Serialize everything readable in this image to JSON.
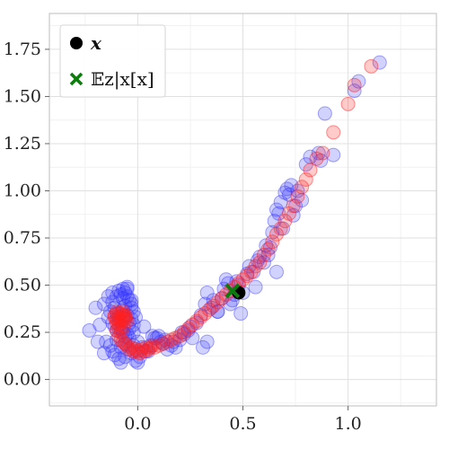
{
  "chart_data": {
    "type": "scatter",
    "xlim": [
      -0.42,
      1.42
    ],
    "ylim": [
      -0.14,
      1.94
    ],
    "x_ticks": [
      0.0,
      0.5,
      1.0
    ],
    "x_tick_labels": [
      "0.0",
      "0.5",
      "1.0"
    ],
    "y_ticks": [
      0.0,
      0.25,
      0.5,
      0.75,
      1.0,
      1.25,
      1.5,
      1.75
    ],
    "y_tick_labels": [
      "0.00",
      "0.25",
      "0.50",
      "0.75",
      "1.00",
      "1.25",
      "1.50",
      "1.75"
    ],
    "grid": true,
    "legend_position": "top-left",
    "legend": [
      {
        "label": "x",
        "marker": "circle",
        "color": "#000000"
      },
      {
        "label": "𝔼z|x[x]",
        "marker": "x",
        "color": "#0b7d0b"
      }
    ],
    "series": [
      {
        "color": "#3333ff",
        "opacity": 0.22,
        "x": [
          -0.2,
          -0.16,
          -0.14,
          -0.12,
          -0.1,
          -0.09,
          -0.08,
          -0.07,
          -0.06,
          -0.05,
          -0.04,
          -0.03,
          -0.02,
          -0.13,
          -0.11,
          -0.1,
          -0.09,
          -0.07,
          -0.06,
          -0.05,
          -0.04,
          -0.03,
          -0.02,
          -0.01,
          -0.12,
          -0.11,
          -0.1,
          -0.08,
          -0.07,
          -0.06,
          -0.05,
          -0.04,
          -0.15,
          -0.13,
          -0.12,
          -0.11,
          -0.09,
          -0.08,
          -0.06,
          -0.05,
          -0.03,
          -0.02,
          -0.01,
          0.0,
          -0.18,
          -0.14,
          -0.12,
          -0.1,
          -0.08,
          -0.06,
          -0.04,
          -0.02,
          -0.07,
          -0.05,
          -0.03,
          0.0,
          0.02,
          0.04,
          0.06,
          0.08,
          0.1,
          0.12,
          0.14,
          0.16,
          0.18,
          0.2,
          0.22,
          0.24,
          0.26,
          0.28,
          0.3,
          0.32,
          0.33,
          0.35,
          0.36,
          0.38,
          0.4,
          0.42,
          0.44,
          0.46,
          0.47,
          0.48,
          0.5,
          0.52,
          0.53,
          0.55,
          0.56,
          0.57,
          0.58,
          0.6,
          0.61,
          0.62,
          0.63,
          0.64,
          0.65,
          0.66,
          0.67,
          0.68,
          0.69,
          0.7,
          0.71,
          0.72,
          0.73,
          0.74,
          0.75,
          0.76,
          0.78,
          0.8,
          0.82,
          0.86,
          0.89,
          0.93,
          1.03,
          1.05,
          1.15,
          -0.23,
          -0.19,
          -0.16,
          0.01,
          0.07,
          0.11,
          0.31,
          0.33,
          0.38,
          0.49,
          0.66,
          0.87,
          0.45,
          0.41,
          0.43,
          -0.05,
          -0.03,
          0.03,
          0.05,
          0.09,
          0.13,
          0.17,
          0.21,
          0.25
        ],
        "y": [
          0.38,
          0.4,
          0.44,
          0.46,
          0.44,
          0.47,
          0.45,
          0.48,
          0.46,
          0.44,
          0.42,
          0.38,
          0.36,
          0.36,
          0.38,
          0.35,
          0.33,
          0.37,
          0.39,
          0.34,
          0.3,
          0.32,
          0.29,
          0.33,
          0.3,
          0.28,
          0.26,
          0.27,
          0.25,
          0.23,
          0.24,
          0.22,
          0.2,
          0.18,
          0.15,
          0.13,
          0.11,
          0.09,
          0.12,
          0.16,
          0.14,
          0.18,
          0.1,
          0.09,
          0.29,
          0.33,
          0.41,
          0.21,
          0.17,
          0.19,
          0.27,
          0.25,
          0.43,
          0.49,
          0.4,
          0.2,
          0.17,
          0.15,
          0.18,
          0.22,
          0.23,
          0.19,
          0.16,
          0.18,
          0.17,
          0.21,
          0.24,
          0.26,
          0.22,
          0.3,
          0.34,
          0.4,
          0.46,
          0.38,
          0.42,
          0.36,
          0.43,
          0.53,
          0.4,
          0.45,
          0.52,
          0.5,
          0.46,
          0.56,
          0.6,
          0.57,
          0.49,
          0.63,
          0.65,
          0.62,
          0.71,
          0.66,
          0.7,
          0.78,
          0.84,
          0.9,
          0.88,
          0.94,
          0.8,
          0.99,
          1.01,
          0.98,
          1.03,
          0.87,
          0.92,
          1.0,
          0.95,
          1.14,
          1.18,
          1.2,
          1.41,
          1.19,
          1.53,
          1.58,
          1.68,
          0.26,
          0.2,
          0.14,
          0.12,
          0.23,
          0.2,
          0.17,
          0.2,
          0.36,
          0.35,
          0.57,
          1.16,
          0.42,
          0.48,
          0.51,
          0.48,
          0.42,
          0.28,
          0.15,
          0.22,
          0.21,
          0.2,
          0.25,
          0.28
        ]
      },
      {
        "color": "#ff2020",
        "opacity": 0.24,
        "x": [
          -0.11,
          -0.1,
          -0.09,
          -0.08,
          -0.07,
          -0.06,
          -0.05,
          -0.11,
          -0.1,
          -0.09,
          -0.08,
          -0.07,
          -0.06,
          -0.1,
          -0.09,
          -0.08,
          -0.07,
          -0.06,
          -0.09,
          -0.08,
          -0.07,
          -0.1,
          -0.09,
          -0.08,
          -0.07,
          -0.06,
          -0.05,
          -0.04,
          -0.03,
          -0.02,
          -0.01,
          0.0,
          0.01,
          0.02,
          0.03,
          0.04,
          0.05,
          0.06,
          0.07,
          0.08,
          0.1,
          0.12,
          0.14,
          0.16,
          0.18,
          0.2,
          0.22,
          0.24,
          0.26,
          0.28,
          0.3,
          0.32,
          0.34,
          0.36,
          0.38,
          0.4,
          0.42,
          0.44,
          0.46,
          0.48,
          0.5,
          0.52,
          0.54,
          0.56,
          0.58,
          0.6,
          0.62,
          0.64,
          0.66,
          0.68,
          0.7,
          0.72,
          0.74,
          0.76,
          0.78,
          0.8,
          0.82,
          0.85,
          0.88,
          0.93,
          1.0,
          1.03,
          1.11
        ],
        "y": [
          0.34,
          0.36,
          0.35,
          0.33,
          0.32,
          0.34,
          0.31,
          0.33,
          0.32,
          0.31,
          0.35,
          0.36,
          0.33,
          0.3,
          0.29,
          0.31,
          0.34,
          0.32,
          0.27,
          0.25,
          0.28,
          0.26,
          0.23,
          0.21,
          0.2,
          0.19,
          0.18,
          0.16,
          0.17,
          0.15,
          0.16,
          0.15,
          0.14,
          0.16,
          0.15,
          0.17,
          0.16,
          0.17,
          0.18,
          0.17,
          0.18,
          0.19,
          0.2,
          0.21,
          0.22,
          0.23,
          0.25,
          0.27,
          0.29,
          0.31,
          0.33,
          0.35,
          0.37,
          0.39,
          0.41,
          0.43,
          0.45,
          0.47,
          0.49,
          0.51,
          0.53,
          0.55,
          0.57,
          0.6,
          0.62,
          0.66,
          0.69,
          0.73,
          0.77,
          0.8,
          0.84,
          0.88,
          0.92,
          0.97,
          1.02,
          1.06,
          1.11,
          1.17,
          1.2,
          1.31,
          1.46,
          1.56,
          1.66
        ]
      }
    ],
    "highlight_point": {
      "x": 0.48,
      "y": 0.46,
      "color": "#000000"
    },
    "expectation_point": {
      "x": 0.45,
      "y": 0.47,
      "color": "#0b7d0b"
    }
  }
}
